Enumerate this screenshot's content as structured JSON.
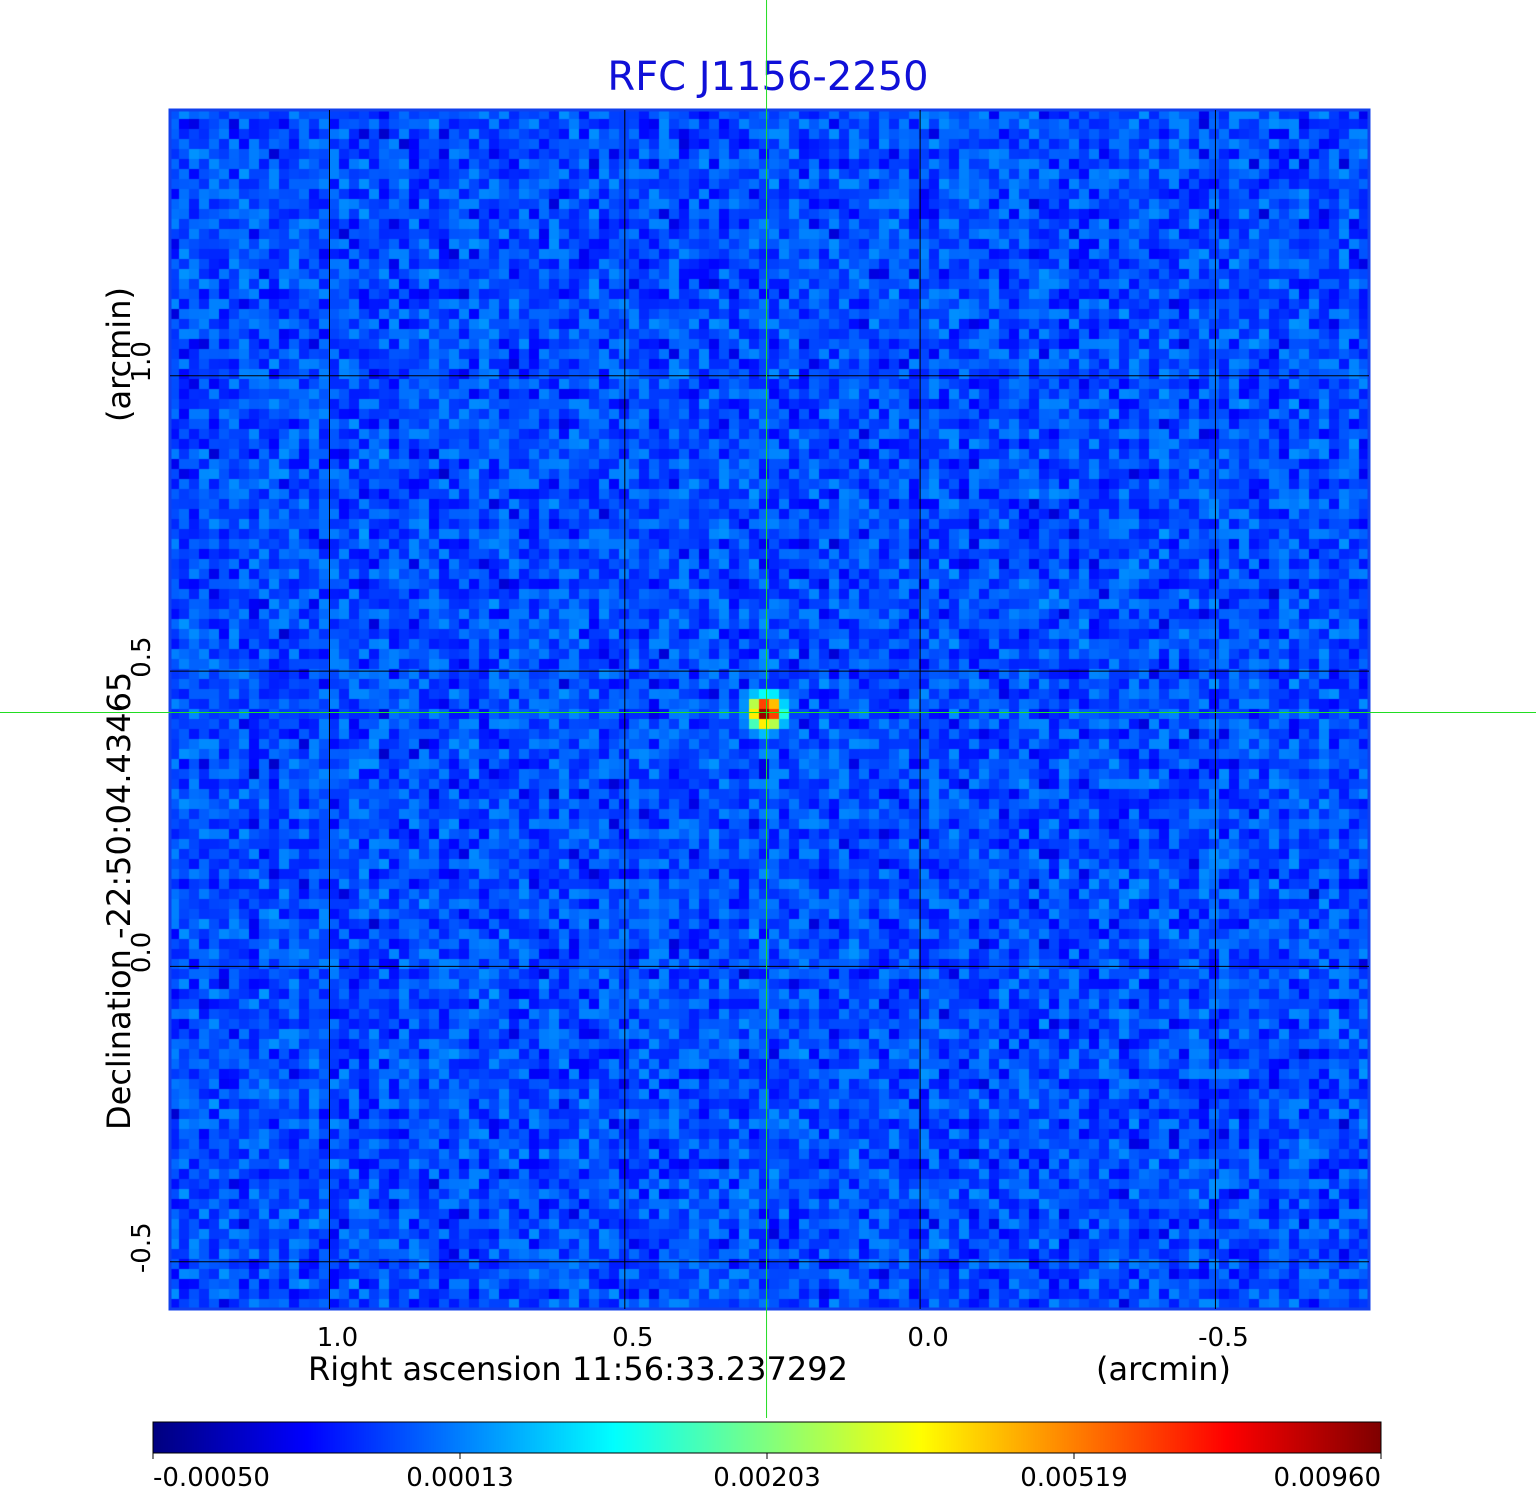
{
  "chart_data": {
    "type": "heatmap",
    "title": "RFC J1156-2250",
    "xlabel": "Right ascension  11:56:33.237292",
    "xunit": "(arcmin)",
    "ylabel": "Declination  -22:50:04.43465",
    "yunit": "(arcmin)",
    "x_range": [
      1.27,
      -0.76
    ],
    "y_range": [
      -0.58,
      1.45
    ],
    "x_ticks": [
      1.0,
      0.5,
      0.0,
      -0.5
    ],
    "x_tick_labels": [
      "1.0",
      "0.5",
      "0.0",
      "-0.5"
    ],
    "y_ticks": [
      1.0,
      0.5,
      0.0,
      -0.5
    ],
    "y_tick_labels": [
      "1.0",
      "0.5",
      "0.0",
      "-0.5"
    ],
    "grid": true,
    "crosshair": {
      "x": 0.26,
      "y": 0.43
    },
    "source_peak": {
      "x": 0.26,
      "y": 0.43,
      "value": 0.0096
    },
    "background_level": 0.0,
    "colorbar": {
      "ticks": [
        -0.0005,
        0.00013,
        0.00203,
        0.00519,
        0.0096
      ],
      "tick_labels": [
        "-0.00050",
        "0.00013",
        "0.00203",
        "0.00519",
        "0.00960"
      ],
      "colormap": "jet"
    },
    "colors": {
      "title": "#1010d8",
      "crosshair": "#22dd22",
      "grid": "#000000",
      "frame": "#1040ee"
    }
  }
}
